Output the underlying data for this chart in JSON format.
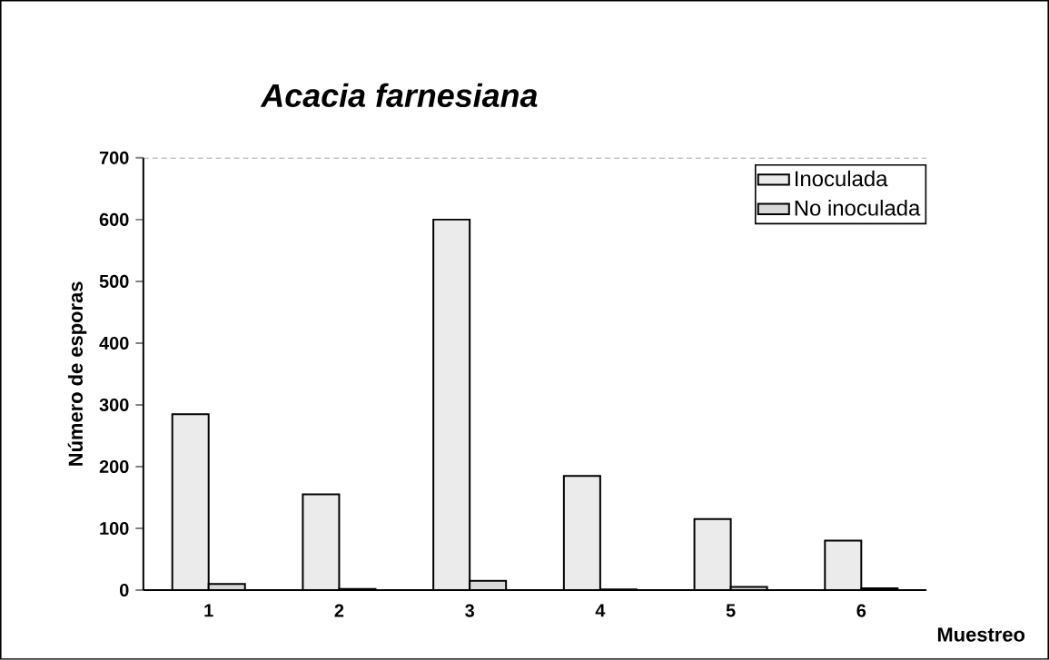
{
  "chart_data": {
    "type": "bar",
    "title": "*Acacia farnesiana*",
    "xlabel": "Muestreo",
    "ylabel": "Número de esporas",
    "categories": [
      "1",
      "2",
      "3",
      "4",
      "5",
      "6"
    ],
    "series": [
      {
        "name": "Inoculada",
        "color": "#ebebeb",
        "values": [
          285,
          155,
          600,
          185,
          115,
          80
        ]
      },
      {
        "name": "No inoculada",
        "color": "#d9d9d9",
        "values": [
          10,
          2,
          15,
          1,
          5,
          3
        ]
      }
    ],
    "ylim": [
      0,
      700
    ],
    "yticks": [
      0,
      100,
      200,
      300,
      400,
      500,
      600,
      700
    ],
    "legend": "top right"
  }
}
